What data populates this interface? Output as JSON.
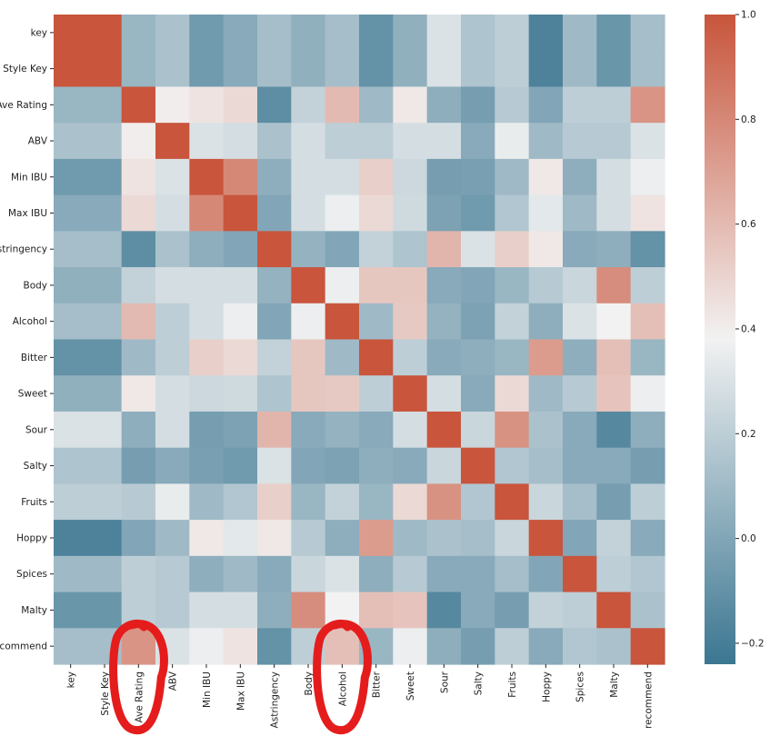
{
  "chart_data": {
    "type": "heatmap",
    "variables": [
      "key",
      "Style Key",
      "Ave Rating",
      "ABV",
      "Min IBU",
      "Max IBU",
      "Astringency",
      "Body",
      "Alcohol",
      "Bitter",
      "Sweet",
      "Sour",
      "Salty",
      "Fruits",
      "Hoppy",
      "Spices",
      "Malty",
      "recommend"
    ],
    "row_labels": [
      "key",
      "Style Key",
      "Ave Rating",
      "ABV",
      "Min IBU",
      "Max IBU",
      "Astringency",
      "Body",
      "Alcohol",
      "Bitter",
      "Sweet",
      "Sour",
      "Salty",
      "Fruits",
      "Hoppy",
      "Spices",
      "Malty",
      "recommend"
    ],
    "col_labels": [
      "key",
      "Style Key",
      "Ave Rating",
      "ABV",
      "Min IBU",
      "Max IBU",
      "Astringency",
      "Body",
      "Alcohol",
      "Bitter",
      "Sweet",
      "Sour",
      "Salty",
      "Fruits",
      "Hoppy",
      "Spices",
      "Malty",
      "recommend"
    ],
    "values": [
      [
        1.0,
        1.0,
        0.08,
        0.14,
        -0.06,
        0.02,
        0.12,
        0.05,
        0.12,
        -0.1,
        0.05,
        0.3,
        0.15,
        0.2,
        -0.18,
        0.1,
        -0.08,
        0.12
      ],
      [
        1.0,
        1.0,
        0.08,
        0.14,
        -0.06,
        0.02,
        0.12,
        0.05,
        0.12,
        -0.1,
        0.05,
        0.3,
        0.15,
        0.2,
        -0.18,
        0.1,
        -0.08,
        0.12
      ],
      [
        0.08,
        0.08,
        1.0,
        0.4,
        0.44,
        0.48,
        -0.12,
        0.22,
        0.6,
        0.1,
        0.42,
        0.04,
        -0.04,
        0.18,
        0.0,
        0.2,
        0.2,
        0.75
      ],
      [
        0.14,
        0.14,
        0.4,
        1.0,
        0.3,
        0.28,
        0.14,
        0.28,
        0.2,
        0.2,
        0.28,
        0.28,
        0.02,
        0.35,
        0.1,
        0.18,
        0.18,
        0.3
      ],
      [
        -0.06,
        -0.06,
        0.44,
        0.3,
        1.0,
        0.8,
        0.04,
        0.28,
        0.28,
        0.52,
        0.25,
        -0.04,
        -0.03,
        0.1,
        0.42,
        0.04,
        0.28,
        0.36
      ],
      [
        0.02,
        0.02,
        0.48,
        0.28,
        0.8,
        1.0,
        0.0,
        0.28,
        0.36,
        0.48,
        0.26,
        -0.02,
        -0.06,
        0.16,
        0.33,
        0.1,
        0.28,
        0.44
      ],
      [
        0.12,
        0.12,
        -0.12,
        0.14,
        0.04,
        0.0,
        1.0,
        0.06,
        0.0,
        0.22,
        0.15,
        0.62,
        0.3,
        0.52,
        0.42,
        0.02,
        0.04,
        -0.1
      ],
      [
        0.05,
        0.05,
        0.22,
        0.28,
        0.28,
        0.28,
        0.06,
        1.0,
        0.36,
        0.55,
        0.55,
        0.02,
        0.0,
        0.08,
        0.18,
        0.24,
        0.78,
        0.2
      ],
      [
        0.12,
        0.12,
        0.6,
        0.2,
        0.28,
        0.36,
        0.0,
        0.36,
        1.0,
        0.1,
        0.54,
        0.06,
        -0.02,
        0.22,
        0.04,
        0.3,
        0.38,
        0.58
      ],
      [
        -0.1,
        -0.1,
        0.1,
        0.2,
        0.52,
        0.48,
        0.22,
        0.55,
        0.1,
        1.0,
        0.2,
        0.02,
        0.04,
        0.08,
        0.72,
        0.04,
        0.58,
        0.08
      ],
      [
        0.05,
        0.05,
        0.42,
        0.28,
        0.25,
        0.26,
        0.15,
        0.55,
        0.54,
        0.2,
        1.0,
        0.28,
        0.02,
        0.48,
        0.1,
        0.18,
        0.56,
        0.36
      ],
      [
        0.3,
        0.3,
        0.04,
        0.28,
        -0.04,
        -0.02,
        0.62,
        0.02,
        0.06,
        0.02,
        0.28,
        1.0,
        0.24,
        0.76,
        0.14,
        0.02,
        -0.15,
        0.04
      ],
      [
        0.15,
        0.15,
        -0.04,
        0.02,
        -0.03,
        -0.06,
        0.3,
        0.0,
        -0.02,
        0.04,
        0.02,
        0.24,
        1.0,
        0.16,
        0.12,
        0.02,
        0.02,
        -0.04
      ],
      [
        0.2,
        0.2,
        0.18,
        0.35,
        0.1,
        0.16,
        0.52,
        0.08,
        0.22,
        0.08,
        0.48,
        0.76,
        0.16,
        1.0,
        0.24,
        0.12,
        -0.04,
        0.2
      ],
      [
        -0.18,
        -0.18,
        0.0,
        0.1,
        0.42,
        0.33,
        0.42,
        0.18,
        0.04,
        0.72,
        0.1,
        0.14,
        0.12,
        0.24,
        1.0,
        0.0,
        0.22,
        0.02
      ],
      [
        0.1,
        0.1,
        0.2,
        0.18,
        0.04,
        0.1,
        0.02,
        0.24,
        0.3,
        0.04,
        0.18,
        0.02,
        0.02,
        0.12,
        0.0,
        1.0,
        0.2,
        0.16
      ],
      [
        -0.08,
        -0.08,
        0.2,
        0.18,
        0.28,
        0.28,
        0.04,
        0.78,
        0.38,
        0.58,
        0.56,
        -0.15,
        0.02,
        -0.04,
        0.22,
        0.2,
        1.0,
        0.14
      ],
      [
        0.12,
        0.12,
        0.75,
        0.3,
        0.36,
        0.44,
        -0.1,
        0.2,
        0.58,
        0.08,
        0.36,
        0.04,
        -0.04,
        0.2,
        0.02,
        0.16,
        0.14,
        1.0
      ]
    ],
    "colorbar": {
      "vmin": -0.24,
      "vmax": 1.0,
      "ticks": [
        -0.2,
        0.0,
        0.2,
        0.4,
        0.6,
        0.8,
        1.0
      ],
      "tick_labels": [
        "−0.2",
        "0.0",
        "0.2",
        "0.4",
        "0.6",
        "0.8",
        "1.0"
      ],
      "colormap": "diverging blue-white-red",
      "low_color": "#3b7691",
      "mid_color": "#f2f2f2",
      "high_color": "#c8553c"
    },
    "annotations": [
      {
        "type": "hand-drawn-circle",
        "color": "#e51c1c",
        "target": "Ave Rating"
      },
      {
        "type": "hand-drawn-circle",
        "color": "#e51c1c",
        "target": "Alcohol"
      }
    ],
    "grid": false,
    "legend": "colorbar-right"
  }
}
